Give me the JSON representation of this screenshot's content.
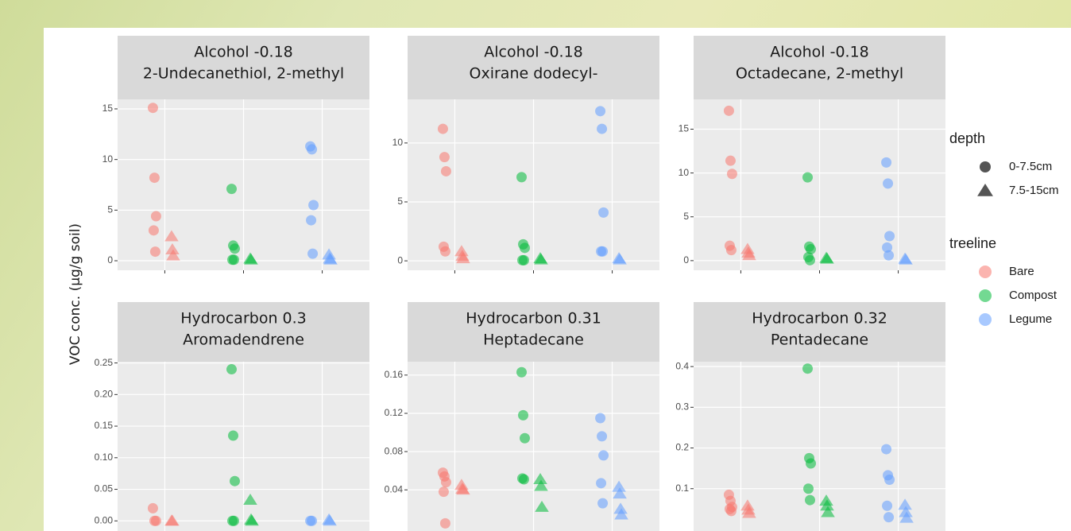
{
  "chart_data": {
    "type": "scatter",
    "y_label": "VOC conc. (µg/g soil)",
    "grid": true,
    "legend_position": "right",
    "legend": [
      {
        "title": "depth",
        "items": [
          {
            "label": "0-7.5cm",
            "shape": "circle"
          },
          {
            "label": "7.5-15cm",
            "shape": "triangle"
          }
        ]
      },
      {
        "title": "treeline",
        "items": [
          {
            "label": "Bare",
            "color": "#f8766d"
          },
          {
            "label": "Compost",
            "color": "#00ba38"
          },
          {
            "label": "Legume",
            "color": "#619cff"
          }
        ]
      }
    ],
    "facets": [
      {
        "strip": [
          "Alcohol -0.18",
          "2-Undecanethiol, 2-methyl"
        ],
        "ylim": [
          -0.94,
          15.94
        ],
        "yticks": [
          0,
          5,
          10,
          15
        ],
        "values": [
          [
            [
              15.1,
              8.2,
              4.4,
              3.0,
              0.9
            ],
            [
              2.4,
              1.1,
              0.5
            ]
          ],
          [
            [
              7.1,
              1.5,
              1.2,
              0.1,
              0.1
            ],
            [
              0.2,
              0.1
            ]
          ],
          [
            [
              11.3,
              11.0,
              5.5,
              4.0,
              0.7
            ],
            [
              0.6,
              0.2,
              0.1
            ]
          ]
        ]
      },
      {
        "strip": [
          "Alcohol -0.18",
          "Oxirane dodecyl-"
        ],
        "ylim": [
          -0.8,
          13.7
        ],
        "yticks": [
          0,
          5,
          10
        ],
        "values": [
          [
            [
              11.2,
              8.8,
              7.6,
              1.2,
              0.8
            ],
            [
              0.8,
              0.4,
              0.2
            ]
          ],
          [
            [
              7.1,
              1.4,
              1.1,
              0.05,
              0.05
            ],
            [
              0.2,
              0.1
            ]
          ],
          [
            [
              12.7,
              11.2,
              4.1,
              0.8,
              0.8
            ],
            [
              0.2,
              0.1
            ]
          ]
        ]
      },
      {
        "strip": [
          "Alcohol -0.18",
          "Octadecane, 2-methyl"
        ],
        "ylim": [
          -1.1,
          18.4
        ],
        "yticks": [
          0,
          5,
          10,
          15
        ],
        "values": [
          [
            [
              17.1,
              11.4,
              9.9,
              1.7,
              1.2
            ],
            [
              1.3,
              0.9,
              0.6
            ]
          ],
          [
            [
              9.5,
              1.6,
              1.3,
              0.4,
              0.05
            ],
            [
              0.3,
              0.2
            ]
          ],
          [
            [
              11.2,
              8.8,
              2.8,
              1.5,
              0.6
            ],
            [
              0.2,
              0.1
            ]
          ]
        ]
      },
      {
        "strip": [
          "Hydrocarbon 0.3",
          "Aromadendrene"
        ],
        "ylim": [
          -0.016,
          0.252
        ],
        "yticks": [
          {
            "value": 0,
            "label": "0.00"
          },
          {
            "value": 0.05,
            "label": "0.05"
          },
          {
            "value": 0.1,
            "label": "0.10"
          },
          {
            "value": 0.15,
            "label": "0.15"
          },
          {
            "value": 0.2,
            "label": "0.20"
          },
          {
            "value": 0.25,
            "label": "0.25"
          }
        ],
        "values": [
          [
            [
              0.02,
              0.0,
              0.0
            ],
            [
              0.0,
              0.0
            ]
          ],
          [
            [
              0.24,
              0.135,
              0.063,
              0.0,
              0.0
            ],
            [
              0.033,
              0.002,
              0.0
            ]
          ],
          [
            [
              0.0,
              0.0
            ],
            [
              0.002,
              0.0
            ]
          ]
        ]
      },
      {
        "strip": [
          "Hydrocarbon 0.31",
          "Heptadecane"
        ],
        "ylim": [
          -0.003,
          0.174
        ],
        "yticks": [
          0.04,
          0.08,
          0.12,
          0.16
        ],
        "values": [
          [
            [
              0.058,
              0.054,
              0.048,
              0.038,
              0.005
            ],
            [
              0.045,
              0.041,
              0.04
            ]
          ],
          [
            [
              0.163,
              0.118,
              0.094,
              0.052,
              0.051
            ],
            [
              0.051,
              0.044,
              0.022
            ]
          ],
          [
            [
              0.115,
              0.096,
              0.076,
              0.047,
              0.026
            ],
            [
              0.043,
              0.036,
              0.02,
              0.014
            ]
          ]
        ]
      },
      {
        "strip": [
          "Hydrocarbon 0.32",
          "Pentadecane"
        ],
        "ylim": [
          -0.004,
          0.412
        ],
        "yticks": [
          0.1,
          0.2,
          0.3,
          0.4
        ],
        "values": [
          [
            [
              0.085,
              0.07,
              0.055,
              0.05,
              0.045
            ],
            [
              0.058,
              0.048,
              0.04
            ]
          ],
          [
            [
              0.395,
              0.175,
              0.162,
              0.1,
              0.072
            ],
            [
              0.07,
              0.058,
              0.042
            ]
          ],
          [
            [
              0.197,
              0.133,
              0.122,
              0.058,
              0.03
            ],
            [
              0.06,
              0.042,
              0.028
            ]
          ]
        ]
      }
    ]
  }
}
